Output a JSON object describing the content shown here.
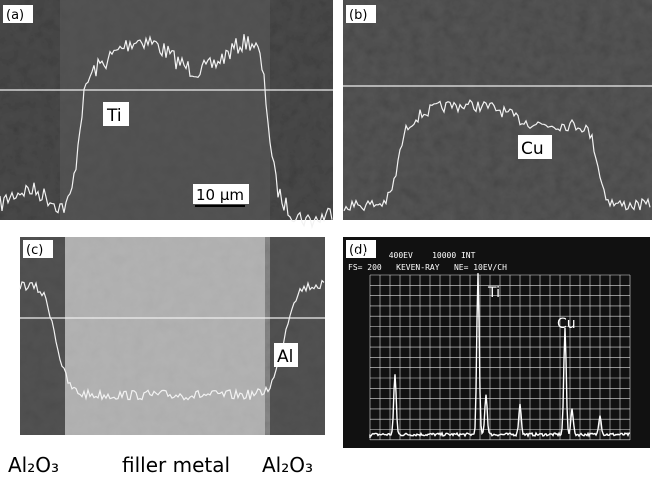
{
  "panels": [
    {
      "label": "(a)",
      "annotations": [
        "Ti",
        "10 µm"
      ]
    },
    {
      "label": "(b)",
      "annotations": [
        "Cu"
      ]
    },
    {
      "label": "(c)",
      "annotations": [
        "Al"
      ]
    },
    {
      "label": "(d)",
      "header": [
        "0CH    400EV    10000 INT",
        "FS= 200   KEVEN-RAY   NE= 10EV/CH"
      ],
      "peaks": [
        "Ti",
        "Cu"
      ]
    }
  ],
  "regions": [
    "Al₂O₃",
    "filler metal",
    "Al₂O₃"
  ]
}
